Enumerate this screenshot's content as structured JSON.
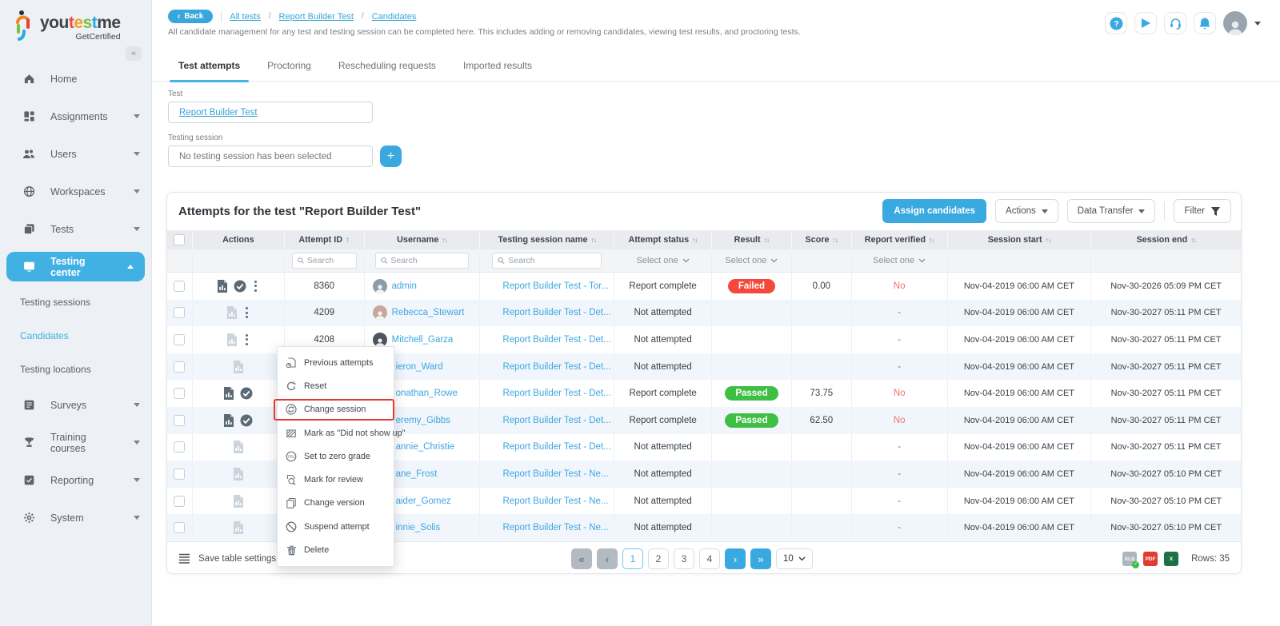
{
  "colors": {
    "accent": "#3aa9e0",
    "sidebar_active": "#41b1e4",
    "failed_badge": "#f4483a",
    "passed_badge": "#3ebf44",
    "no_text": "#f2706d",
    "highlight_border": "#e53935"
  },
  "sidebar": {
    "logo_parts": [
      {
        "t": "you",
        "c": "#3d4349"
      },
      {
        "t": "t",
        "c": "#e94f3d"
      },
      {
        "t": "e",
        "c": "#f5a11c"
      },
      {
        "t": "s",
        "c": "#7ac143"
      },
      {
        "t": "t",
        "c": "#29a9e0"
      },
      {
        "t": "me",
        "c": "#3d4349"
      }
    ],
    "logo_sub": "GetCertified",
    "collapse_glyph": "«",
    "nav": [
      {
        "type": "item",
        "label": "Home",
        "icon": "home",
        "expandable": false
      },
      {
        "type": "item",
        "label": "Assignments",
        "icon": "assignments",
        "expandable": true
      },
      {
        "type": "item",
        "label": "Users",
        "icon": "users",
        "expandable": true
      },
      {
        "type": "item",
        "label": "Workspaces",
        "icon": "workspaces",
        "expandable": true
      },
      {
        "type": "item",
        "label": "Tests",
        "icon": "tests",
        "expandable": true
      },
      {
        "type": "item",
        "label": "Testing center",
        "icon": "testing-center",
        "expandable": true,
        "active": true,
        "expanded": true
      },
      {
        "type": "sub",
        "label": "Testing sessions"
      },
      {
        "type": "sub",
        "label": "Candidates",
        "active": true
      },
      {
        "type": "sub",
        "label": "Testing locations"
      },
      {
        "type": "item",
        "label": "Surveys",
        "icon": "surveys",
        "expandable": true
      },
      {
        "type": "item",
        "label": "Training courses",
        "icon": "training",
        "expandable": true
      },
      {
        "type": "item",
        "label": "Reporting",
        "icon": "reporting",
        "expandable": true
      },
      {
        "type": "item",
        "label": "System",
        "icon": "system",
        "expandable": true
      }
    ]
  },
  "topbar": {
    "back_label": "Back",
    "breadcrumbs": [
      "All tests",
      "Report Builder Test",
      "Candidates"
    ],
    "subtitle": "All candidate management for any test and testing session can be completed here. This includes adding or removing candidates, viewing test results, and proctoring tests.",
    "action_icons": [
      "help-icon",
      "video-icon",
      "support-icon",
      "notifications-icon"
    ]
  },
  "tabs": [
    {
      "label": "Test attempts",
      "active": true
    },
    {
      "label": "Proctoring",
      "active": false
    },
    {
      "label": "Rescheduling requests",
      "active": false
    },
    {
      "label": "Imported results",
      "active": false
    }
  ],
  "filters": {
    "test_label": "Test",
    "test_value": "Report Builder Test",
    "session_label": "Testing session",
    "session_placeholder": "No testing session has been selected"
  },
  "card": {
    "title": "Attempts for the test \"Report Builder Test\"",
    "assign_label": "Assign candidates",
    "actions_label": "Actions",
    "data_transfer_label": "Data Transfer",
    "filter_label": "Filter"
  },
  "table": {
    "search_placeholder": "Search",
    "select_placeholder": "Select one",
    "columns": [
      {
        "label": "",
        "kind": "cb"
      },
      {
        "label": "Actions",
        "kind": "plain"
      },
      {
        "label": "Attempt ID",
        "kind": "sort-asc"
      },
      {
        "label": "Username",
        "kind": "sort"
      },
      {
        "label": "Testing session name",
        "kind": "sort"
      },
      {
        "label": "Attempt status",
        "kind": "sort"
      },
      {
        "label": "Result",
        "kind": "sort"
      },
      {
        "label": "Score",
        "kind": "sort"
      },
      {
        "label": "Report verified",
        "kind": "sort"
      },
      {
        "label": "Session start",
        "kind": "sort"
      },
      {
        "label": "Session end",
        "kind": "sort"
      }
    ],
    "filter_kinds": [
      "none",
      "none",
      "search",
      "search",
      "search",
      "select",
      "select",
      "none",
      "select",
      "none",
      "none"
    ],
    "rows": [
      {
        "report_icon": "dark",
        "verified_icon": true,
        "kebab": true,
        "id": "8360",
        "username": "admin",
        "avatar": 0,
        "covered": false,
        "session": "Report Builder Test - Tor...",
        "status": "Report complete",
        "result": "Failed",
        "score": "0.00",
        "verified": "No",
        "start": "Nov-04-2019 06:00 AM CET",
        "end": "Nov-30-2026 05:09 PM CET"
      },
      {
        "report_icon": "light",
        "verified_icon": false,
        "kebab": true,
        "id": "4209",
        "username": "Rebecca_Stewart",
        "avatar": 1,
        "covered": false,
        "session": "Report Builder Test - Det...",
        "status": "Not attempted",
        "result": "",
        "score": "",
        "verified": "-",
        "start": "Nov-04-2019 06:00 AM CET",
        "end": "Nov-30-2027 05:11 PM CET"
      },
      {
        "report_icon": "light",
        "verified_icon": false,
        "kebab": true,
        "id": "4208",
        "username": "Mitchell_Garza",
        "avatar": 2,
        "covered": false,
        "session": "Report Builder Test - Det...",
        "status": "Not attempted",
        "result": "",
        "score": "",
        "verified": "-",
        "start": "Nov-04-2019 06:00 AM CET",
        "end": "Nov-30-2027 05:11 PM CET"
      },
      {
        "report_icon": "light",
        "verified_icon": false,
        "kebab": false,
        "id": "",
        "username": "ieron_Ward",
        "avatar": null,
        "covered": true,
        "session": "Report Builder Test - Det...",
        "status": "Not attempted",
        "result": "",
        "score": "",
        "verified": "-",
        "start": "Nov-04-2019 06:00 AM CET",
        "end": "Nov-30-2027 05:11 PM CET"
      },
      {
        "report_icon": "dark",
        "verified_icon": true,
        "kebab": false,
        "id": "",
        "username": "onathan_Rowe",
        "avatar": null,
        "covered": true,
        "session": "Report Builder Test - Det...",
        "status": "Report complete",
        "result": "Passed",
        "score": "73.75",
        "verified": "No",
        "start": "Nov-04-2019 06:00 AM CET",
        "end": "Nov-30-2027 05:11 PM CET"
      },
      {
        "report_icon": "dark",
        "verified_icon": true,
        "kebab": false,
        "id": "",
        "username": "eremy_Gibbs",
        "avatar": null,
        "covered": true,
        "session": "Report Builder Test - Det...",
        "status": "Report complete",
        "result": "Passed",
        "score": "62.50",
        "verified": "No",
        "start": "Nov-04-2019 06:00 AM CET",
        "end": "Nov-30-2027 05:11 PM CET"
      },
      {
        "report_icon": "light",
        "verified_icon": false,
        "kebab": false,
        "id": "",
        "username": "annie_Christie",
        "avatar": null,
        "covered": true,
        "session": "Report Builder Test - Det...",
        "status": "Not attempted",
        "result": "",
        "score": "",
        "verified": "-",
        "start": "Nov-04-2019 06:00 AM CET",
        "end": "Nov-30-2027 05:11 PM CET"
      },
      {
        "report_icon": "light",
        "verified_icon": false,
        "kebab": false,
        "id": "",
        "username": "ane_Frost",
        "avatar": null,
        "covered": true,
        "session": "Report Builder Test - Ne...",
        "status": "Not attempted",
        "result": "",
        "score": "",
        "verified": "-",
        "start": "Nov-04-2019 06:00 AM CET",
        "end": "Nov-30-2027 05:10 PM CET"
      },
      {
        "report_icon": "light",
        "verified_icon": false,
        "kebab": false,
        "id": "",
        "username": "aider_Gomez",
        "avatar": null,
        "covered": true,
        "session": "Report Builder Test - Ne...",
        "status": "Not attempted",
        "result": "",
        "score": "",
        "verified": "-",
        "start": "Nov-04-2019 06:00 AM CET",
        "end": "Nov-30-2027 05:10 PM CET"
      },
      {
        "report_icon": "light",
        "verified_icon": false,
        "kebab": false,
        "id": "",
        "username": "innie_Solis",
        "avatar": null,
        "covered": true,
        "session": "Report Builder Test - Ne...",
        "status": "Not attempted",
        "result": "",
        "score": "",
        "verified": "-",
        "start": "Nov-04-2019 06:00 AM CET",
        "end": "Nov-30-2027 05:10 PM CET"
      }
    ]
  },
  "context_menu": {
    "highlighted_index": 2,
    "items": [
      {
        "label": "Previous attempts",
        "icon": "previous-attempts"
      },
      {
        "label": "Reset",
        "icon": "reset"
      },
      {
        "label": "Change session",
        "icon": "change-session"
      },
      {
        "label": "Mark as \"Did not show up\"",
        "icon": "did-not-show-up"
      },
      {
        "label": "Set to zero grade",
        "icon": "zero-grade"
      },
      {
        "label": "Mark for review",
        "icon": "mark-for-review"
      },
      {
        "label": "Change version",
        "icon": "change-version"
      },
      {
        "label": "Suspend attempt",
        "icon": "suspend-attempt"
      },
      {
        "label": "Delete",
        "icon": "delete"
      }
    ]
  },
  "footer": {
    "save_settings_label": "Save table settings",
    "pagination": {
      "first": "«",
      "prev": "‹",
      "pages": [
        "1",
        "2",
        "3",
        "4"
      ],
      "active_page": "1",
      "next": "›",
      "last": "»"
    },
    "page_size": "10",
    "rows_info": "Rows: 35",
    "export_icons": [
      "export-all-xls-icon",
      "export-pdf-icon",
      "export-excel-icon"
    ]
  }
}
